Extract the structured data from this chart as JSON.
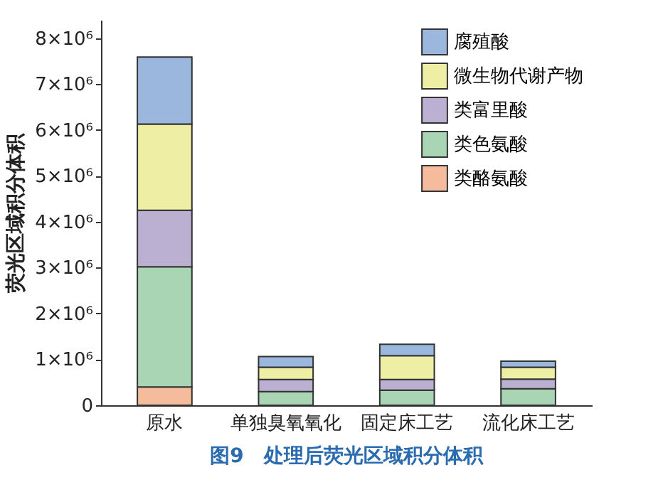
{
  "chart_data": {
    "type": "bar",
    "stacked": true,
    "ylabel": "荧光区域积分体积",
    "categories": [
      "原水",
      "单独臭氧氧化",
      "固定床工艺",
      "流化床工艺"
    ],
    "series": [
      {
        "name": "类酪氨酸",
        "color": "#f4bc9c",
        "values": [
          400000,
          0,
          0,
          0
        ]
      },
      {
        "name": "类色氨酸",
        "color": "#a9d5b5",
        "values": [
          2620000,
          300000,
          330000,
          360000
        ]
      },
      {
        "name": "类富里酸",
        "color": "#bcb0d2",
        "values": [
          1230000,
          260000,
          230000,
          210000
        ]
      },
      {
        "name": "微生物代谢产物",
        "color": "#eeeea4",
        "values": [
          1880000,
          270000,
          520000,
          260000
        ]
      },
      {
        "name": "腐殖酸",
        "color": "#9bb7dd",
        "values": [
          1460000,
          230000,
          250000,
          130000
        ]
      }
    ],
    "ylim": [
      0,
      8400000
    ],
    "yticks": [
      0,
      {
        "value": 1000000,
        "label": "1×10⁶"
      },
      {
        "value": 2000000,
        "label": "2×10⁶"
      },
      {
        "value": 3000000,
        "label": "3×10⁶"
      },
      {
        "value": 4000000,
        "label": "4×10⁶"
      },
      {
        "value": 5000000,
        "label": "5×10⁶"
      },
      {
        "value": 6000000,
        "label": "6×10⁶"
      },
      {
        "value": 7000000,
        "label": "7×10⁶"
      },
      {
        "value": 8000000,
        "label": "8×10⁶"
      }
    ],
    "legend": "top right",
    "annotations": [
      "图9　处理后荧光区域积分体积"
    ]
  }
}
